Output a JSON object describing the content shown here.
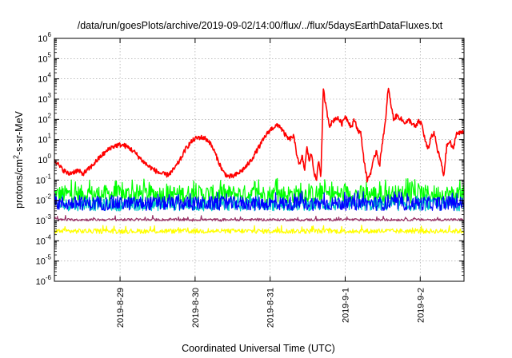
{
  "chart_data": {
    "type": "line",
    "title": "/data/run/goesPlots/archive/2019-09-02/14:00/flux/../flux/5daysEarthDataFluxes.txt",
    "xlabel": "Coordinated Universal Time (UTC)",
    "ylabel": {
      "prefix": "protons/cm",
      "sup": "2",
      "suffix": "-s-sr-MeV"
    },
    "y_scale": "log",
    "ylim_exp": [
      -6,
      6
    ],
    "y_tick_base": "10",
    "y_ticks_exp": [
      -6,
      -5,
      -4,
      -3,
      -2,
      -1,
      0,
      1,
      2,
      3,
      4,
      5,
      6
    ],
    "xlim": [
      "2019-08-28 03:00",
      "2019-09-02 14:00"
    ],
    "x_ticks": [
      {
        "t": "2019-08-29 00:00",
        "label": "2019-8-29"
      },
      {
        "t": "2019-08-30 00:00",
        "label": "2019-8-30"
      },
      {
        "t": "2019-08-31 00:00",
        "label": "2019-8-31"
      },
      {
        "t": "2019-09-01 00:00",
        "label": "2019-9-1"
      },
      {
        "t": "2019-09-02 00:00",
        "label": "2019-9-2"
      }
    ],
    "grid": true,
    "legend": "none",
    "series": [
      {
        "color": "#ff0000",
        "style": "noisy",
        "noise_log": 0.12,
        "x": [
          "2019-08-28 03:00",
          "2019-08-28 04:30",
          "2019-08-28 06:00",
          "2019-08-28 07:30",
          "2019-08-28 09:00",
          "2019-08-28 10:30",
          "2019-08-28 12:00",
          "2019-08-28 13:30",
          "2019-08-28 15:00",
          "2019-08-28 16:30",
          "2019-08-28 18:00",
          "2019-08-28 19:30",
          "2019-08-28 21:00",
          "2019-08-28 22:30",
          "2019-08-29 00:00",
          "2019-08-29 01:30",
          "2019-08-29 03:00",
          "2019-08-29 04:30",
          "2019-08-29 06:00",
          "2019-08-29 07:30",
          "2019-08-29 09:00",
          "2019-08-29 10:30",
          "2019-08-29 12:00",
          "2019-08-29 13:30",
          "2019-08-29 15:00",
          "2019-08-29 16:30",
          "2019-08-29 18:00",
          "2019-08-29 19:30",
          "2019-08-29 21:00",
          "2019-08-29 22:30",
          "2019-08-30 00:00",
          "2019-08-30 01:30",
          "2019-08-30 03:00",
          "2019-08-30 04:30",
          "2019-08-30 06:00",
          "2019-08-30 07:30",
          "2019-08-30 09:00",
          "2019-08-30 10:30",
          "2019-08-30 12:00",
          "2019-08-30 13:30",
          "2019-08-30 15:00",
          "2019-08-30 16:30",
          "2019-08-30 18:00",
          "2019-08-30 19:30",
          "2019-08-30 21:00",
          "2019-08-30 22:30",
          "2019-08-31 00:00",
          "2019-08-31 01:30",
          "2019-08-31 03:00",
          "2019-08-31 04:30",
          "2019-08-31 06:00",
          "2019-08-31 07:30",
          "2019-08-31 08:30",
          "2019-08-31 09:30",
          "2019-08-31 10:15",
          "2019-08-31 11:00",
          "2019-08-31 11:45",
          "2019-08-31 12:30",
          "2019-08-31 13:15",
          "2019-08-31 14:00",
          "2019-08-31 14:45",
          "2019-08-31 15:30",
          "2019-08-31 16:15",
          "2019-08-31 17:00",
          "2019-08-31 18:00",
          "2019-08-31 19:00",
          "2019-08-31 20:00",
          "2019-08-31 21:00",
          "2019-08-31 22:00",
          "2019-08-31 23:00",
          "2019-09-01 00:00",
          "2019-09-01 01:00",
          "2019-09-01 02:00",
          "2019-09-01 03:00",
          "2019-09-01 04:00",
          "2019-09-01 05:00",
          "2019-09-01 06:00",
          "2019-09-01 07:00",
          "2019-09-01 08:00",
          "2019-09-01 09:00",
          "2019-09-01 10:00",
          "2019-09-01 11:00",
          "2019-09-01 12:00",
          "2019-09-01 13:00",
          "2019-09-01 13:45",
          "2019-09-01 14:30",
          "2019-09-01 15:30",
          "2019-09-01 16:30",
          "2019-09-01 17:30",
          "2019-09-01 18:30",
          "2019-09-01 19:30",
          "2019-09-01 20:30",
          "2019-09-01 21:30",
          "2019-09-01 22:30",
          "2019-09-01 23:30",
          "2019-09-02 00:30",
          "2019-09-02 01:30",
          "2019-09-02 02:30",
          "2019-09-02 03:30",
          "2019-09-02 04:30",
          "2019-09-02 05:30",
          "2019-09-02 06:30",
          "2019-09-02 07:30",
          "2019-09-02 08:30",
          "2019-09-02 09:30",
          "2019-09-02 10:30",
          "2019-09-02 11:30",
          "2019-09-02 12:30",
          "2019-09-02 13:30",
          "2019-09-02 14:00"
        ],
        "y": [
          1.1,
          0.5,
          0.3,
          0.2,
          0.25,
          0.3,
          0.2,
          0.3,
          0.5,
          0.9,
          1.6,
          2.5,
          4,
          5,
          5.5,
          5,
          3.8,
          2.5,
          1.4,
          0.8,
          0.5,
          0.35,
          0.25,
          0.2,
          0.18,
          0.25,
          0.5,
          1.2,
          3.5,
          7,
          11,
          13,
          12,
          8,
          3,
          0.8,
          0.25,
          0.15,
          0.15,
          0.2,
          0.3,
          0.5,
          1,
          2.5,
          6,
          15,
          30,
          45,
          50,
          20,
          10,
          15,
          2,
          0.5,
          1.5,
          0.3,
          4,
          1,
          2,
          0.3,
          0.08,
          1,
          0.15,
          3000,
          300,
          50,
          80,
          120,
          100,
          60,
          150,
          80,
          40,
          100,
          30,
          20,
          1,
          0.1,
          0.2,
          0.8,
          3,
          0.5,
          10,
          100,
          4000,
          700,
          100,
          150,
          120,
          80,
          70,
          90,
          60,
          40,
          80,
          60,
          10,
          3,
          15,
          20,
          3,
          1,
          0.15,
          5,
          8,
          3,
          20,
          20,
          25,
          25
        ]
      },
      {
        "color": "#00ff00",
        "style": "band",
        "x_range": [
          "2019-08-28 03:00",
          "2019-09-02 14:00"
        ],
        "center": 0.02,
        "spread_log": 0.45,
        "spike_max": 0.12
      },
      {
        "color": "#00c8c8",
        "style": "band",
        "x_range": [
          "2019-08-28 03:00",
          "2019-09-02 14:00"
        ],
        "center": 0.006,
        "spread_log": 0.3,
        "spike_max": 0.02
      },
      {
        "color": "#0000ff",
        "style": "band",
        "x_range": [
          "2019-08-28 03:00",
          "2019-09-02 14:00"
        ],
        "center": 0.007,
        "spread_log": 0.35,
        "spike_max": 0.03
      },
      {
        "color": "#993366",
        "style": "band",
        "x_range": [
          "2019-08-28 03:00",
          "2019-09-02 14:00"
        ],
        "center": 0.0011,
        "spread_log": 0.06,
        "spike_max": 0.0018
      },
      {
        "color": "#ffff00",
        "style": "band",
        "x_range": [
          "2019-08-28 03:00",
          "2019-09-02 14:00"
        ],
        "center": 0.0003,
        "spread_log": 0.12,
        "spike_max": 0.0006
      }
    ]
  }
}
